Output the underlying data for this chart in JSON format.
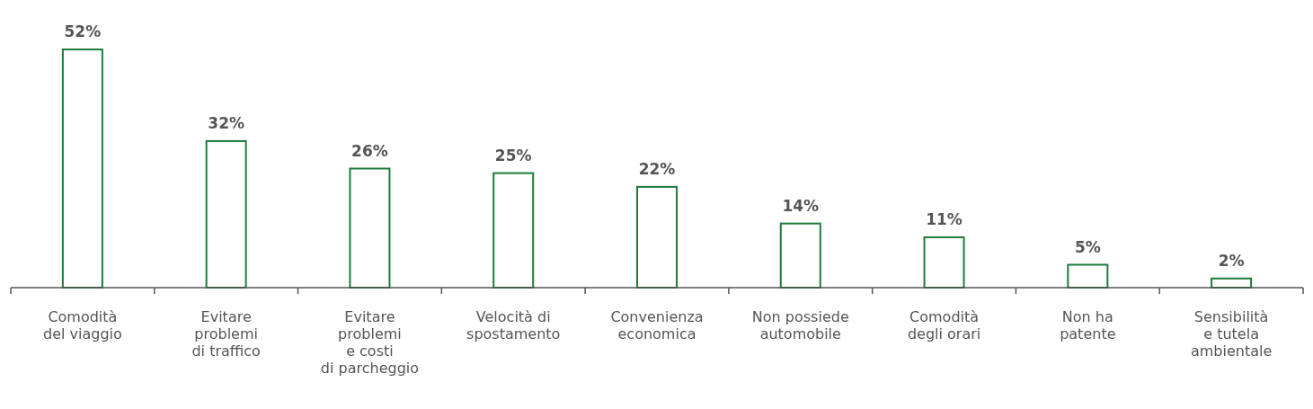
{
  "chart_data": {
    "type": "bar",
    "categories": [
      "Comodità\ndel viaggio",
      "Evitare\nproblemi\ndi traffico",
      "Evitare\nproblemi\ne costi\ndi parcheggio",
      "Velocità di\nspostamento",
      "Convenienza\neconomica",
      "Non possiede\nautomobile",
      "Comodità\ndegli orari",
      "Non ha\npatente",
      "Sensibilità\ne tutela\nambientale"
    ],
    "values": [
      52,
      32,
      26,
      25,
      22,
      14,
      11,
      5,
      2
    ],
    "color": "#1e7b3c",
    "value_labels": [
      "52%",
      "32%",
      "26%",
      "25%",
      "22%",
      "14%",
      "11%",
      "5%",
      "2%"
    ]
  }
}
